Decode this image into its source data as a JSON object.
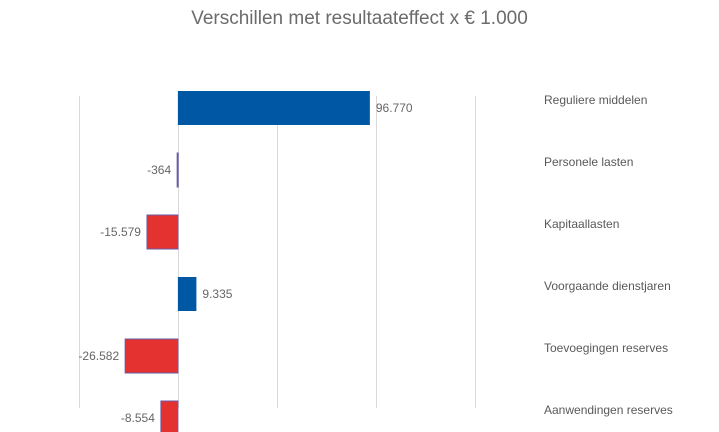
{
  "chart_data": {
    "type": "bar",
    "orientation": "horizontal",
    "title": "Verschillen met resultaateffect x € 1.000",
    "categories": [
      "Reguliere middelen",
      "Personele lasten",
      "Kapitaallasten",
      "Voorgaande dienstjaren",
      "Toevoegingen reserves",
      "Aanwendingen reserves"
    ],
    "values": [
      96770,
      -364,
      -15579,
      9335,
      -26582,
      -8554
    ],
    "value_labels": [
      "96.770",
      "-364",
      "-15.579",
      "9.335",
      "-26.582",
      "-8.554"
    ],
    "xlim": [
      -70000,
      180000
    ],
    "gridlines": [
      -50000,
      0,
      50000,
      100000,
      150000
    ],
    "grid": true,
    "legend": "none",
    "colors": {
      "positive": "#0057a3",
      "negative": "#e3322f",
      "negative_border": "#6a5aa8"
    }
  }
}
